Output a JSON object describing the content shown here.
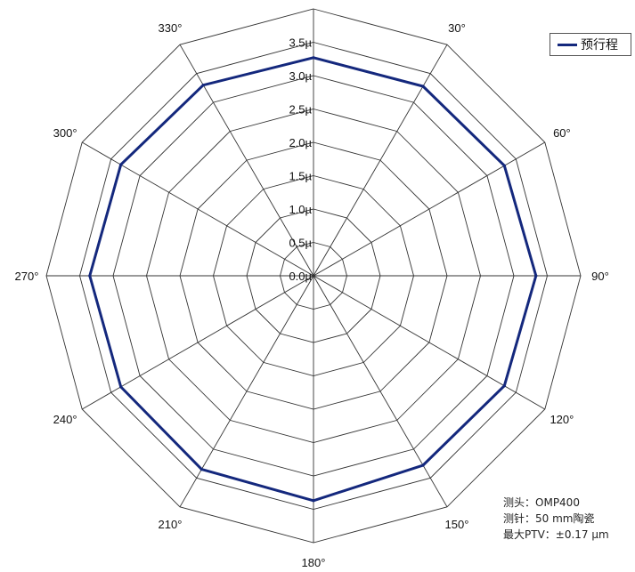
{
  "chart_data": {
    "type": "radar",
    "title": "",
    "angles_deg": [
      0,
      30,
      60,
      90,
      120,
      150,
      180,
      210,
      240,
      270,
      300,
      330
    ],
    "angle_labels": [
      "",
      "30°",
      "60°",
      "90°",
      "120°",
      "150°",
      "180°",
      "210°",
      "240°",
      "270°",
      "300°",
      "330°"
    ],
    "radial_ticks": [
      0.0,
      0.5,
      1.0,
      1.5,
      2.0,
      2.5,
      3.0,
      3.5
    ],
    "radial_tick_labels": [
      "0.0µ",
      "0.5µ",
      "1.0µ",
      "1.5µ",
      "2.0µ",
      "2.5µ",
      "3.0µ",
      "3.5µ"
    ],
    "rlim": [
      0,
      4.0
    ],
    "grid": true,
    "legend_position": "top-right",
    "series": [
      {
        "name": "预行程",
        "color": "#14287d",
        "values": [
          3.27,
          3.28,
          3.3,
          3.33,
          3.3,
          3.28,
          3.37,
          3.35,
          3.33,
          3.35,
          3.33,
          3.3
        ]
      }
    ]
  },
  "info": {
    "probe_label": "测头：",
    "probe_value": "OMP400",
    "stylus_label": "测针：",
    "stylus_value": "50 mm陶瓷",
    "ptv_label": "最大PTV：",
    "ptv_value": "±0.17 µm"
  }
}
